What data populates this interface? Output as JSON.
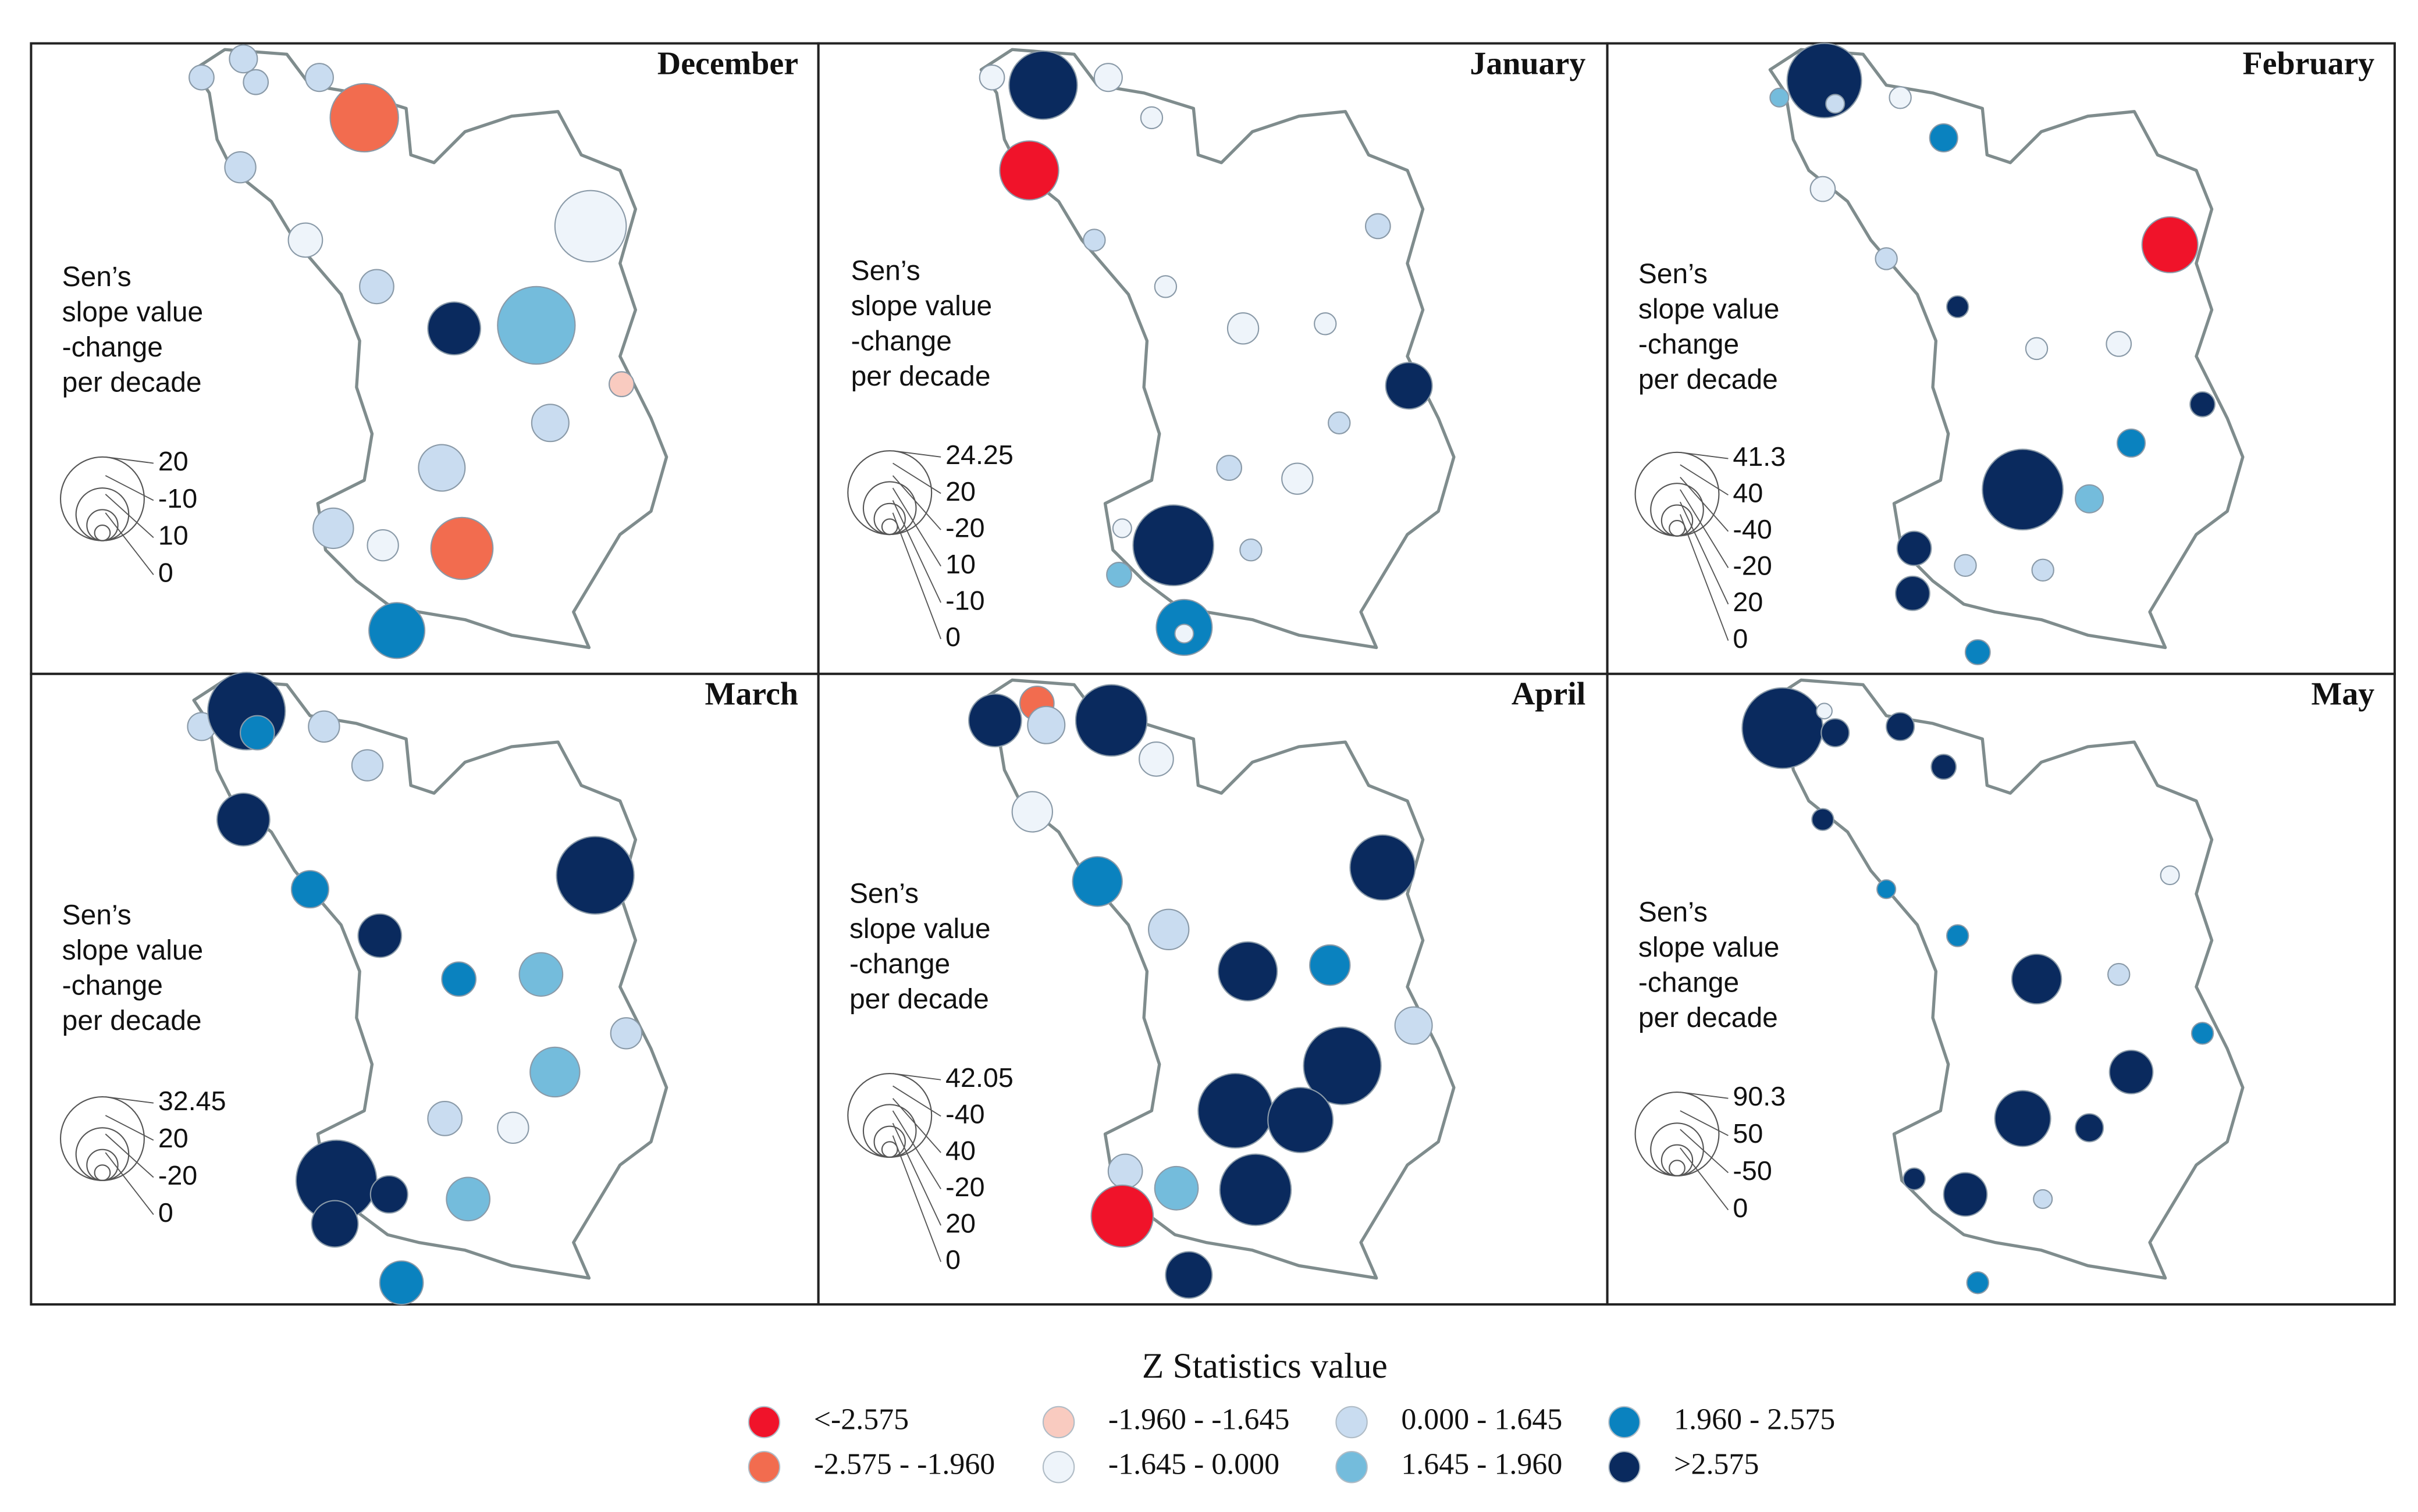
{
  "panels": [
    {
      "title": "December",
      "legend_title": [
        "Sen’s",
        "slope value",
        "-change",
        "per decade"
      ],
      "size_labels": [
        "20",
        "-10",
        "10",
        "0"
      ]
    },
    {
      "title": "January",
      "legend_title": [
        "Sen’s",
        "slope value",
        "-change",
        "per decade"
      ],
      "size_labels": [
        "24.25",
        "20",
        "-20",
        "10",
        "-10",
        "0"
      ]
    },
    {
      "title": "February",
      "legend_title": [
        "Sen’s",
        "slope value",
        "-change",
        "per decade"
      ],
      "size_labels": [
        "41.3",
        "40",
        "-40",
        "-20",
        "20",
        "0"
      ]
    },
    {
      "title": "March",
      "legend_title": [
        "Sen’s",
        "slope value",
        "-change",
        "per decade"
      ],
      "size_labels": [
        "32.45",
        "20",
        "-20",
        "0"
      ]
    },
    {
      "title": "April",
      "legend_title": [
        "Sen’s",
        "slope value",
        "-change",
        "per decade"
      ],
      "size_labels": [
        "42.05",
        "-40",
        "40",
        "-20",
        "20",
        "0"
      ]
    },
    {
      "title": "May",
      "legend_title": [
        "Sen’s",
        "slope value",
        "-change",
        "per decade"
      ],
      "size_labels": [
        "90.3",
        "50",
        "-50",
        "0"
      ]
    }
  ],
  "legend": {
    "title": "Z Statistics value",
    "items": [
      {
        "label": "<-2.575",
        "color": "#f0132a"
      },
      {
        "label": "-2.575 - -1.960",
        "color": "#f26c4f"
      },
      {
        "label": "-1.960 - -1.645",
        "color": "#f9cbc0"
      },
      {
        "label": "-1.645 - 0.000",
        "color": "#eef4fa"
      },
      {
        "label": "0.000 - 1.645",
        "color": "#c9dcf0"
      },
      {
        "label": "1.645 - 1.960",
        "color": "#74bcdc"
      },
      {
        "label": "1.960 - 2.575",
        "color": "#0a82bf"
      },
      {
        "label": ">2.575",
        "color": "#0a2a5e"
      }
    ]
  }
}
